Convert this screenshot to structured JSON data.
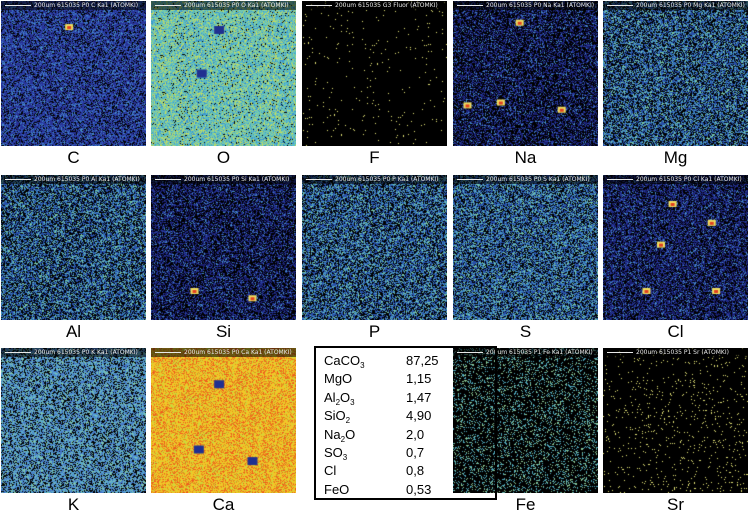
{
  "maps": [
    {
      "id": "C",
      "label": "C",
      "header": "615035 P0  C Ka1 (ATOMKI)",
      "scale": "200um",
      "palette": "blue",
      "density": 0.75,
      "hot": [
        [
          0.47,
          0.18
        ]
      ]
    },
    {
      "id": "O",
      "label": "O",
      "header": "615035 P0  O Ka1 (ATOMKI)",
      "scale": "200um",
      "palette": "cyan",
      "density": 0.95,
      "cold": [
        [
          0.47,
          0.2
        ],
        [
          0.35,
          0.5
        ]
      ]
    },
    {
      "id": "F",
      "label": "F",
      "header": "615035 G3  Fluor (ATOMKI)",
      "scale": "200um",
      "palette": "sparse-yellow",
      "density": 0.012
    },
    {
      "id": "Na",
      "label": "Na",
      "header": "615035 P0  Na Ka1 (ATOMKI)",
      "scale": "200um",
      "palette": "dark-blue",
      "density": 0.5,
      "hot": [
        [
          0.46,
          0.15
        ],
        [
          0.33,
          0.7
        ],
        [
          0.75,
          0.75
        ],
        [
          0.1,
          0.72
        ]
      ]
    },
    {
      "id": "Mg",
      "label": "Mg",
      "header": "615035 P0  Mg Ka1 (ATOMKI)",
      "scale": "200um",
      "palette": "mixed",
      "density": 0.6
    },
    {
      "id": "Al",
      "label": "Al",
      "header": "615035 P0  Al Ka1 (ATOMKI)",
      "scale": "200um",
      "palette": "mixed",
      "density": 0.6
    },
    {
      "id": "Si",
      "label": "Si",
      "header": "615035 P0  Si Ka1 (ATOMKI)",
      "scale": "200um",
      "palette": "dark-blue",
      "density": 0.55,
      "hot": [
        [
          0.7,
          0.85
        ],
        [
          0.3,
          0.8
        ]
      ]
    },
    {
      "id": "P",
      "label": "P",
      "header": "615035 P0  P Ka1 (ATOMKI)",
      "scale": "200um",
      "palette": "mixed",
      "density": 0.62
    },
    {
      "id": "S",
      "label": "S",
      "header": "615035 P0  S Ka1 (ATOMKI)",
      "scale": "200um",
      "palette": "mixed",
      "density": 0.65
    },
    {
      "id": "Cl",
      "label": "Cl",
      "header": "615035 P0  Cl Ka1 (ATOMKI)",
      "scale": "200um",
      "palette": "dark-blue",
      "density": 0.6,
      "hot": [
        [
          0.48,
          0.2
        ],
        [
          0.4,
          0.48
        ],
        [
          0.78,
          0.8
        ],
        [
          0.3,
          0.8
        ],
        [
          0.75,
          0.33
        ]
      ]
    },
    {
      "id": "K",
      "label": "K",
      "header": "615035 P0  K Ka1 (ATOMKI)",
      "scale": "200um",
      "palette": "mixed-light",
      "density": 0.7
    },
    {
      "id": "Ca",
      "label": "Ca",
      "header": "615035 P0  Ca Ka1 (ATOMKI)",
      "scale": "200um",
      "palette": "warm",
      "density": 1.0,
      "cold": [
        [
          0.47,
          0.25
        ],
        [
          0.7,
          0.78
        ],
        [
          0.33,
          0.7
        ]
      ]
    },
    {
      "id": "Fe",
      "label": "Fe",
      "header": "615035 P1  Fe Ka1 (ATOMKI)",
      "scale": "200um",
      "palette": "sparse-cyan",
      "density": 0.2
    },
    {
      "id": "Sr",
      "label": "Sr",
      "header": "615035 P1  Sr (ATOMKI)",
      "scale": "200um",
      "palette": "sparse-yellow",
      "density": 0.03
    }
  ],
  "composition": [
    {
      "formula": [
        "CaCO",
        {
          "sub": "3"
        }
      ],
      "value": "87,25"
    },
    {
      "formula": [
        "MgO"
      ],
      "value": "1,15"
    },
    {
      "formula": [
        "Al",
        {
          "sub": "2"
        },
        "O",
        {
          "sub": "3"
        }
      ],
      "value": "1,47"
    },
    {
      "formula": [
        "SiO",
        {
          "sub": "2"
        }
      ],
      "value": "4,90"
    },
    {
      "formula": [
        "Na",
        {
          "sub": "2"
        },
        "O"
      ],
      "value": "2,0"
    },
    {
      "formula": [
        "SO",
        {
          "sub": "3"
        }
      ],
      "value": "0,7"
    },
    {
      "formula": [
        "Cl"
      ],
      "value": "0,8"
    },
    {
      "formula": [
        "FeO"
      ],
      "value": "0,53"
    }
  ]
}
